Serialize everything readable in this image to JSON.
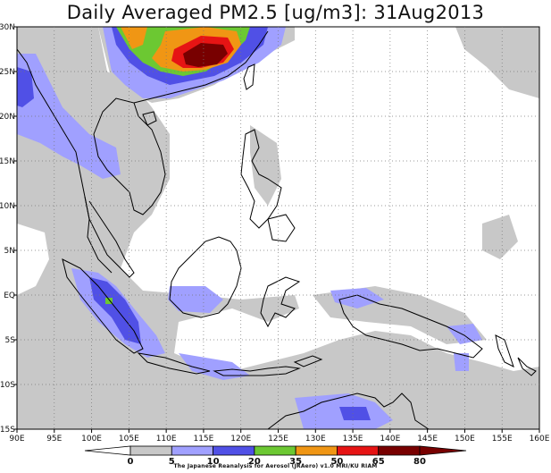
{
  "title": "Daily Averaged PM2.5 [ug/m3]: 31Aug2013",
  "credit": "The Japanese Reanalysis for Aerosol (JRAero) v1.0 MRI/KU RIAM",
  "map": {
    "lon_range": [
      90,
      160
    ],
    "lat_range": [
      -15,
      30
    ],
    "lon_ticks": [
      "90E",
      "95E",
      "100E",
      "105E",
      "110E",
      "115E",
      "120E",
      "125E",
      "130E",
      "135E",
      "140E",
      "145E",
      "150E",
      "155E",
      "160E"
    ],
    "lat_ticks": [
      "30N",
      "25N",
      "20N",
      "15N",
      "10N",
      "5N",
      "EQ",
      "5S",
      "10S",
      "15S"
    ],
    "gridlines": "dotted",
    "colors": {
      "c0_5": "#ffffff",
      "c5_10": "#c8c8c8",
      "c10_20": "#a0a0ff",
      "c20_35": "#5050e6",
      "c35_50": "#6cc832",
      "c50_65": "#f09614",
      "c65_80": "#e61414",
      "c80plus": "#780000"
    }
  },
  "colorbar": {
    "levels": [
      "0",
      "5",
      "10",
      "20",
      "35",
      "50",
      "65",
      "80"
    ],
    "colors": [
      "#ffffff",
      "#c8c8c8",
      "#a0a0ff",
      "#5050e6",
      "#6cc832",
      "#f09614",
      "#e61414",
      "#780000"
    ]
  }
}
